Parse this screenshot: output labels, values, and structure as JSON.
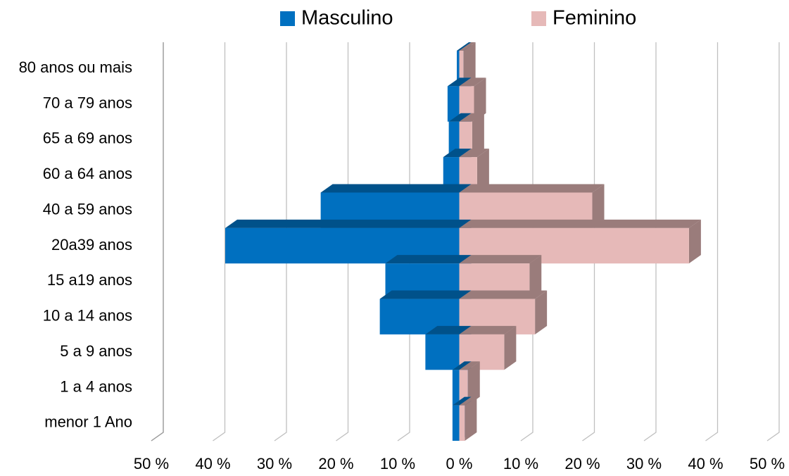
{
  "chart_data": {
    "type": "pyramid",
    "legend": "top",
    "grid": true,
    "categories": [
      "80 anos ou mais",
      "70 a 79 anos",
      "65 a 69 anos",
      "60 a 64 anos",
      "40 a 59 anos",
      "20a39 anos",
      "15 a19 anos",
      "10 a 14 anos",
      "5 a 9 anos",
      "1 a 4 anos",
      "menor 1 Ano"
    ],
    "series": [
      {
        "name": "Masculino",
        "color": "#0070c0",
        "values": [
          -0.4,
          -1.9,
          -1.7,
          -2.6,
          -22.5,
          -38,
          -12,
          -12.9,
          -5.5,
          -1.1,
          -1.1
        ]
      },
      {
        "name": "Feminino",
        "color": "#e6b9b8",
        "values": [
          0.7,
          2.4,
          2.1,
          2.9,
          21.6,
          37.3,
          11.4,
          12.3,
          7.3,
          1.4,
          0.9
        ]
      }
    ],
    "xlim": [
      -50,
      50
    ],
    "xticks": [
      {
        "value": -50,
        "label": "50 %"
      },
      {
        "value": -40,
        "label": "40 %"
      },
      {
        "value": -30,
        "label": "30 %"
      },
      {
        "value": -20,
        "label": "20 %"
      },
      {
        "value": -10,
        "label": "10 %"
      },
      {
        "value": 0,
        "label": "0 %"
      },
      {
        "value": 10,
        "label": "10 %"
      },
      {
        "value": 20,
        "label": "20 %"
      },
      {
        "value": 30,
        "label": "30 %"
      },
      {
        "value": 40,
        "label": "40 %"
      },
      {
        "value": 50,
        "label": "50 %"
      }
    ]
  }
}
